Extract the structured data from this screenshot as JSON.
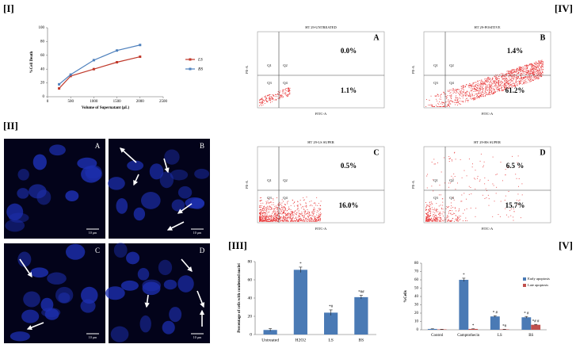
{
  "panel_labels": [
    "[I]",
    "[II]",
    "[III]",
    "[IV]",
    "[V]"
  ],
  "chart_data": [
    {
      "type": "line",
      "x_label": "Volume of Supernatant (µL)",
      "y_label": "%Cell Death",
      "x": [
        250,
        500,
        1000,
        1500,
        2000
      ],
      "xlim": [
        0,
        2500
      ],
      "xticks": [
        0,
        500,
        1000,
        1500,
        2000,
        2500
      ],
      "ylim": [
        0,
        100
      ],
      "yticks": [
        0,
        20,
        40,
        60,
        80,
        100
      ],
      "legend": "right",
      "series": [
        {
          "name": "LS",
          "color": "#c0392b",
          "values": [
            12,
            30,
            40,
            50,
            58
          ]
        },
        {
          "name": "BS",
          "color": "#4f81bd",
          "values": [
            18,
            32,
            53,
            67,
            75
          ]
        }
      ]
    },
    {
      "type": "bar",
      "y_label": "Percentage of cells with condensed nuclei",
      "categories": [
        "Untreated",
        "H2O2",
        "LS",
        "BS"
      ],
      "values": [
        5,
        71,
        24,
        41
      ],
      "errors": [
        1.5,
        3,
        3,
        2
      ],
      "significance": [
        null,
        "*",
        "*#",
        "*##"
      ],
      "color": "#4a7ab5",
      "ylim": [
        0,
        80
      ],
      "yticks": [
        0,
        20,
        40,
        60,
        80
      ]
    },
    {
      "type": "bar",
      "y_label": "%Cells",
      "legend": "right",
      "categories": [
        "Control",
        "Camptothecin",
        "LS",
        "BS"
      ],
      "ylim": [
        0,
        80
      ],
      "yticks": [
        0,
        10,
        20,
        30,
        40,
        50,
        60,
        70,
        80
      ],
      "series": [
        {
          "name": "Early apoptosis",
          "color": "#4a7ab5",
          "values": [
            1,
            60,
            16,
            15
          ],
          "errors": [
            0.3,
            2,
            1,
            1
          ],
          "significance": [
            null,
            "*",
            "* #",
            "* #"
          ]
        },
        {
          "name": "Late apoptosis",
          "color": "#c0504d",
          "values": [
            0.5,
            1,
            0.5,
            6
          ],
          "errors": [
            0.2,
            0.3,
            0.2,
            0.5
          ],
          "significance": [
            null,
            "*",
            "*#",
            "*# #"
          ]
        }
      ]
    }
  ],
  "flow_plots": [
    {
      "title": "HT 29-UNTREATED",
      "letter": "A",
      "y_label": "PE-A",
      "x_label": "FITC-A",
      "quadrants": [
        "Q1",
        "Q2",
        "Q3",
        "Q4"
      ],
      "upper_right": "0.0%",
      "lower_right": "1.1%"
    },
    {
      "title": "HT 29-POSITIVE",
      "letter": "B",
      "y_label": "PE-A",
      "x_label": "FITC-A",
      "quadrants": [
        "Q1",
        "Q2",
        "Q3",
        "Q4"
      ],
      "upper_right": "1.4%",
      "lower_right": "61.2%"
    },
    {
      "title": "HT 29-LS SUPER",
      "letter": "C",
      "y_label": "PE-A",
      "x_label": "FITC-A",
      "quadrants": [
        "Q1",
        "Q2",
        "Q3",
        "Q4"
      ],
      "upper_right": "0.5%",
      "lower_right": "16.0%"
    },
    {
      "title": "HT 29-BS SUPER",
      "letter": "D",
      "y_label": "PE-A",
      "x_label": "FITC-A",
      "quadrants": [
        "Q1",
        "Q2",
        "Q3",
        "Q4"
      ],
      "upper_right": "6.5 %",
      "lower_right": "15.7%"
    }
  ],
  "micrographs": [
    {
      "letter": "A",
      "scale": "10 µm"
    },
    {
      "letter": "B",
      "scale": "10 µm"
    },
    {
      "letter": "C",
      "scale": "10 µm"
    },
    {
      "letter": "D",
      "scale": "10 µm"
    }
  ]
}
